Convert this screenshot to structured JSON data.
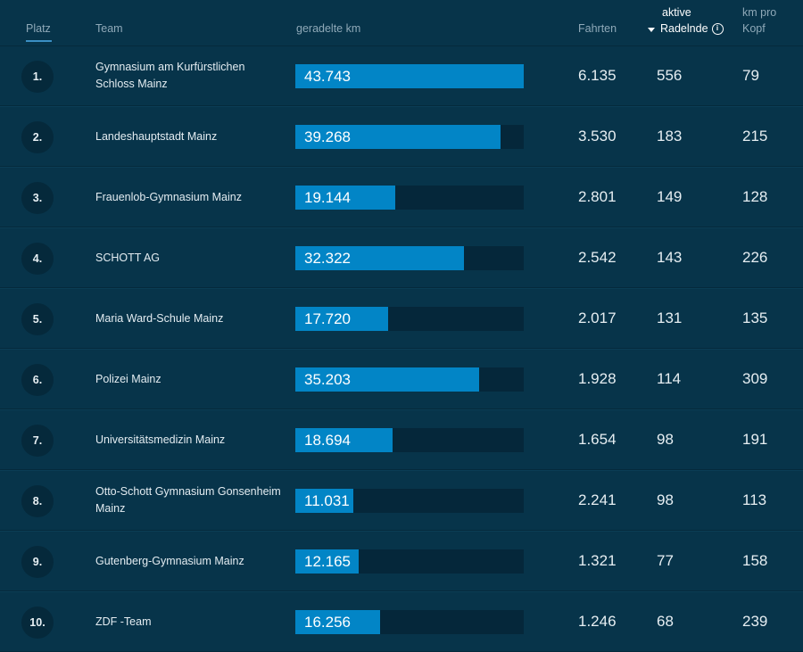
{
  "header": {
    "platz": "Platz",
    "team": "Team",
    "km": "geradelte km",
    "fahrten": "Fahrten",
    "aktive_line1": "aktive",
    "aktive_line2": "Radelnde",
    "info_icon": "i",
    "kopf_line1": "km pro",
    "kopf_line2": "Kopf"
  },
  "sort": {
    "column": "aktive Radelnde",
    "direction": "descending"
  },
  "colors": {
    "background": "#07344a",
    "bar": "#0285c6",
    "bar_track": "#05273a",
    "accent": "#3b8fc4"
  },
  "bar_max_km": 43743,
  "rows": [
    {
      "rank": "1.",
      "team": "Gymnasium am Kurfürstlichen Schloss Mainz",
      "km": "43.743",
      "km_value": 43743,
      "fahrten": "6.135",
      "aktive": "556",
      "kopf": "79"
    },
    {
      "rank": "2.",
      "team": "Landeshauptstadt Mainz",
      "km": "39.268",
      "km_value": 39268,
      "fahrten": "3.530",
      "aktive": "183",
      "kopf": "215"
    },
    {
      "rank": "3.",
      "team": "Frauenlob-Gymnasium Mainz",
      "km": "19.144",
      "km_value": 19144,
      "fahrten": "2.801",
      "aktive": "149",
      "kopf": "128"
    },
    {
      "rank": "4.",
      "team": "SCHOTT AG",
      "km": "32.322",
      "km_value": 32322,
      "fahrten": "2.542",
      "aktive": "143",
      "kopf": "226"
    },
    {
      "rank": "5.",
      "team": "Maria Ward-Schule Mainz",
      "km": "17.720",
      "km_value": 17720,
      "fahrten": "2.017",
      "aktive": "131",
      "kopf": "135"
    },
    {
      "rank": "6.",
      "team": "Polizei Mainz",
      "km": "35.203",
      "km_value": 35203,
      "fahrten": "1.928",
      "aktive": "114",
      "kopf": "309"
    },
    {
      "rank": "7.",
      "team": "Universitätsmedizin Mainz",
      "km": "18.694",
      "km_value": 18694,
      "fahrten": "1.654",
      "aktive": "98",
      "kopf": "191"
    },
    {
      "rank": "8.",
      "team": "Otto-Schott Gymnasium Gonsenheim Mainz",
      "km": "11.031",
      "km_value": 11031,
      "fahrten": "2.241",
      "aktive": "98",
      "kopf": "113"
    },
    {
      "rank": "9.",
      "team": "Gutenberg-Gymnasium Mainz",
      "km": "12.165",
      "km_value": 12165,
      "fahrten": "1.321",
      "aktive": "77",
      "kopf": "158"
    },
    {
      "rank": "10.",
      "team": "ZDF -Team",
      "km": "16.256",
      "km_value": 16256,
      "fahrten": "1.246",
      "aktive": "68",
      "kopf": "239"
    }
  ]
}
